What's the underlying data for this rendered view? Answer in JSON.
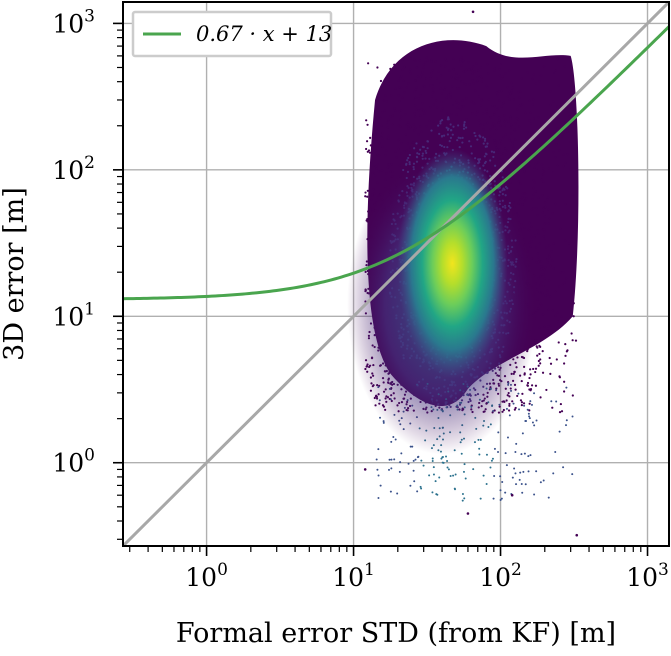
{
  "chart_data": {
    "type": "scatter",
    "title": "",
    "xlabel": "Formal error STD (from KF) [m]",
    "ylabel": "3D error [m]",
    "xscale": "log",
    "yscale": "log",
    "xlim": [
      0.27,
      1400
    ],
    "ylim": [
      0.27,
      1400
    ],
    "grid": true,
    "legend_position": "top-left",
    "x_ticks": [
      {
        "value": 1,
        "base": "10",
        "exp": "0"
      },
      {
        "value": 10,
        "base": "10",
        "exp": "1"
      },
      {
        "value": 100,
        "base": "10",
        "exp": "2"
      },
      {
        "value": 1000,
        "base": "10",
        "exp": "3"
      }
    ],
    "y_ticks": [
      {
        "value": 1,
        "base": "10",
        "exp": "0"
      },
      {
        "value": 10,
        "base": "10",
        "exp": "1"
      },
      {
        "value": 100,
        "base": "10",
        "exp": "2"
      },
      {
        "value": 1000,
        "base": "10",
        "exp": "3"
      }
    ],
    "density_scatter": {
      "colormap": "viridis",
      "core": {
        "x": 47,
        "y": 23
      },
      "bulk_x_range": [
        12,
        330
      ],
      "bulk_y_range": [
        2.2,
        600
      ],
      "sparse_outliers": [
        {
          "x": 65,
          "y": 1200
        },
        {
          "x": 12,
          "y": 0.9
        },
        {
          "x": 330,
          "y": 0.32
        },
        {
          "x": 60,
          "y": 0.45
        },
        {
          "x": 120,
          "y": 0.6
        }
      ]
    },
    "fit_line": {
      "label": "0.67 · x + 13",
      "slope": 0.67,
      "intercept": 13,
      "color": "#4aa54e"
    },
    "reference_line": {
      "slope": 1,
      "intercept": 0,
      "color": "#a8a8a8"
    }
  }
}
